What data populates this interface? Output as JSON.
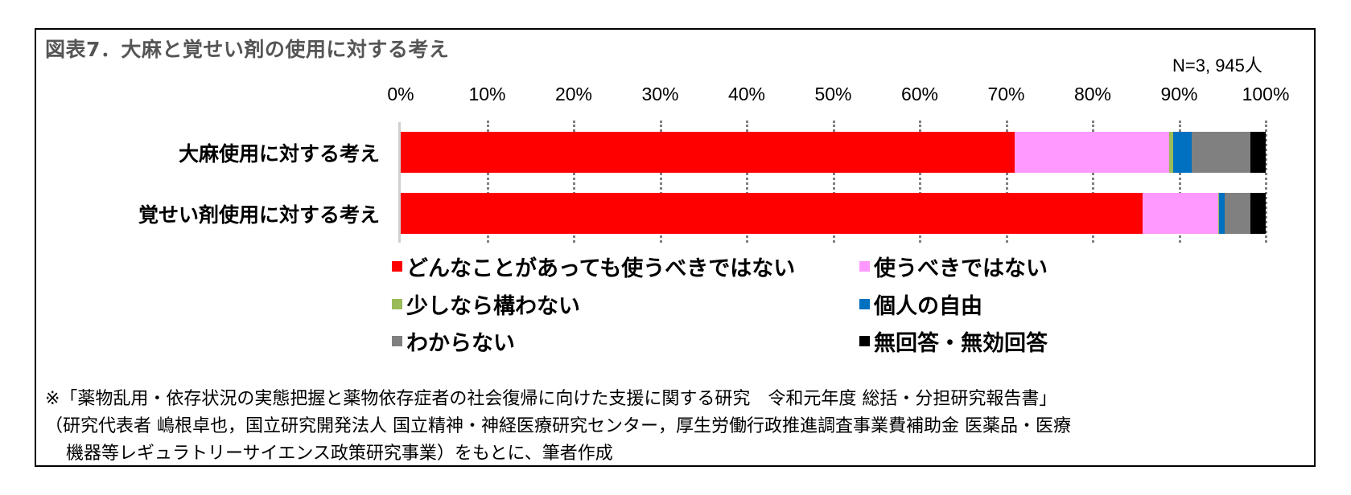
{
  "title": "図表7．大麻と覚せい剤の使用に対する考え",
  "n_label": "N=3, 945人",
  "axis_ticks": [
    "0%",
    "10%",
    "20%",
    "30%",
    "40%",
    "50%",
    "60%",
    "70%",
    "80%",
    "90%",
    "100%"
  ],
  "categories": [
    "大麻使用に対する考え",
    "覚せい剤使用に対する考え"
  ],
  "legend": [
    {
      "label": "どんなことがあっても使うべきではない",
      "color": "#FF0000"
    },
    {
      "label": "使うべきではない",
      "color": "#FF99FF"
    },
    {
      "label": "少しなら構わない",
      "color": "#9BBB59"
    },
    {
      "label": "個人の自由",
      "color": "#0070C0"
    },
    {
      "label": "わからない",
      "color": "#808080"
    },
    {
      "label": "無回答・無効回答",
      "color": "#000000"
    }
  ],
  "footnote": {
    "line1": "※「薬物乱用・依存状況の実態把握と薬物依存症者の社会復帰に向けた支援に関する研究　令和元年度 総括・分担研究報告書」",
    "line2": "（研究代表者 嶋根卓也，国立研究開発法人 国立精神・神経医療研究センター，厚生労働行政推進調査事業費補助金 医薬品・医療",
    "line3": "機器等レギュラトリーサイエンス政策研究事業）をもとに、筆者作成"
  },
  "chart_data": {
    "type": "bar",
    "orientation": "horizontal",
    "stacked": "percent",
    "title": "図表7．大麻と覚せい剤の使用に対する考え",
    "subtitle": "N=3, 945人",
    "xlabel": "",
    "ylabel": "",
    "xlim": [
      0,
      100
    ],
    "x_ticks": [
      "0%",
      "10%",
      "20%",
      "30%",
      "40%",
      "50%",
      "60%",
      "70%",
      "80%",
      "90%",
      "100%"
    ],
    "grid": "vertical dotted",
    "legend_position": "bottom",
    "categories": [
      "大麻使用に対する考え",
      "覚せい剤使用に対する考え"
    ],
    "series": [
      {
        "name": "どんなことがあっても使うべきではない",
        "color": "#FF0000",
        "values": [
          71.0,
          85.8
        ]
      },
      {
        "name": "使うべきではない",
        "color": "#FF99FF",
        "values": [
          17.8,
          8.7
        ]
      },
      {
        "name": "少しなら構わない",
        "color": "#9BBB59",
        "values": [
          0.5,
          0.1
        ]
      },
      {
        "name": "個人の自由",
        "color": "#0070C0",
        "values": [
          2.1,
          0.7
        ]
      },
      {
        "name": "わからない",
        "color": "#808080",
        "values": [
          6.8,
          2.9
        ]
      },
      {
        "name": "無回答・無効回答",
        "color": "#000000",
        "values": [
          1.8,
          1.8
        ]
      }
    ]
  }
}
